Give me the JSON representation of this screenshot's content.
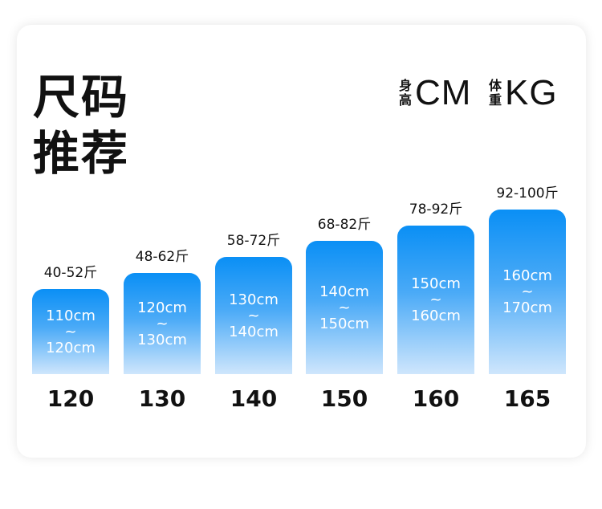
{
  "title": {
    "line1": "尺码",
    "line2": "推荐"
  },
  "legend": {
    "height": {
      "small_top": "身",
      "small_bottom": "高",
      "unit": "CM"
    },
    "weight": {
      "small_top": "体",
      "small_bottom": "重",
      "unit": "KG"
    }
  },
  "sizes": [
    {
      "label": "120",
      "weight": "40-52斤",
      "range_low": "110cm",
      "tilde": "~",
      "range_high": "120cm"
    },
    {
      "label": "130",
      "weight": "48-62斤",
      "range_low": "120cm",
      "tilde": "~",
      "range_high": "130cm"
    },
    {
      "label": "140",
      "weight": "58-72斤",
      "range_low": "130cm",
      "tilde": "~",
      "range_high": "140cm"
    },
    {
      "label": "150",
      "weight": "68-82斤",
      "range_low": "140cm",
      "tilde": "~",
      "range_high": "150cm"
    },
    {
      "label": "160",
      "weight": "78-92斤",
      "range_low": "150cm",
      "tilde": "~",
      "range_high": "160cm"
    },
    {
      "label": "165",
      "weight": "92-100斤",
      "range_low": "160cm",
      "tilde": "~",
      "range_high": "170cm"
    }
  ],
  "colors": {
    "bar_top": "#0a8ff5",
    "bar_bottom": "#cfe6fc",
    "text": "#111111"
  }
}
